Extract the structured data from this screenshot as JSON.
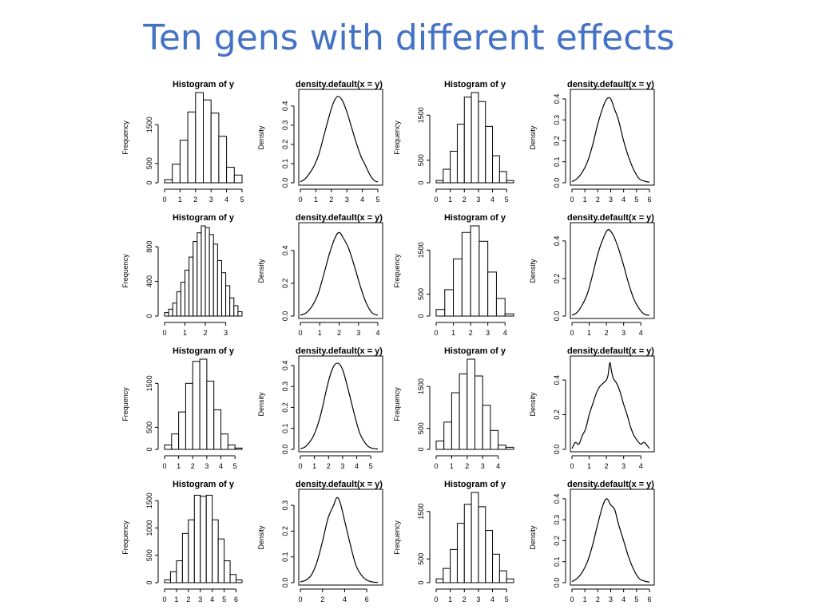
{
  "slide": {
    "title": "Ten gens with different effects"
  },
  "chart_data": [
    {
      "type": "bar",
      "title": "Histogram of y",
      "xlabel": "",
      "ylabel": "Frequency",
      "bin_edges": [
        0,
        0.5,
        1,
        1.5,
        2,
        2.5,
        3,
        3.5,
        4,
        4.5,
        5
      ],
      "values": [
        80,
        480,
        1100,
        1830,
        2330,
        2140,
        1800,
        1200,
        400,
        200
      ],
      "xticks": [
        0,
        1,
        2,
        3,
        4,
        5
      ],
      "yticks": [
        0,
        500,
        1500
      ],
      "xlim": [
        0,
        5
      ],
      "ylim": [
        0,
        2330
      ]
    },
    {
      "type": "line",
      "title": "density.default(x = y)",
      "xlabel": "",
      "ylabel": "Density",
      "x": [
        0,
        0.3,
        0.6,
        0.9,
        1.2,
        1.5,
        1.8,
        2.1,
        2.4,
        2.7,
        3.0,
        3.3,
        3.6,
        3.9,
        4.2,
        4.5,
        4.8,
        5.0
      ],
      "y": [
        0.005,
        0.02,
        0.05,
        0.09,
        0.15,
        0.24,
        0.33,
        0.41,
        0.45,
        0.43,
        0.37,
        0.29,
        0.21,
        0.14,
        0.09,
        0.04,
        0.01,
        0.005
      ],
      "xticks": [
        0,
        1,
        2,
        3,
        4,
        5
      ],
      "yticks": [
        0.0,
        0.1,
        0.2,
        0.3,
        0.4
      ],
      "xlim": [
        0,
        5
      ],
      "ylim": [
        0,
        0.47
      ]
    },
    {
      "type": "bar",
      "title": "Histogram of y",
      "xlabel": "",
      "ylabel": "Frequency",
      "bin_edges": [
        0,
        0.5,
        1,
        1.5,
        2,
        2.5,
        3,
        3.5,
        4,
        4.5,
        5,
        5.5
      ],
      "values": [
        50,
        300,
        700,
        1300,
        1900,
        2000,
        1800,
        1250,
        600,
        250,
        50
      ],
      "xticks": [
        0,
        1,
        2,
        3,
        4,
        5
      ],
      "yticks": [
        0,
        500,
        1500
      ],
      "xlim": [
        0,
        5.5
      ],
      "ylim": [
        0,
        2000
      ]
    },
    {
      "type": "line",
      "title": "density.default(x = y)",
      "xlabel": "",
      "ylabel": "Density",
      "x": [
        0,
        0.4,
        0.8,
        1.2,
        1.6,
        2.0,
        2.4,
        2.7,
        3.0,
        3.3,
        3.6,
        4.0,
        4.4,
        4.8,
        5.2,
        5.6,
        6.0
      ],
      "y": [
        0.005,
        0.02,
        0.05,
        0.1,
        0.18,
        0.28,
        0.36,
        0.4,
        0.4,
        0.35,
        0.3,
        0.2,
        0.12,
        0.06,
        0.02,
        0.008,
        0.003
      ],
      "xticks": [
        0,
        1,
        2,
        3,
        4,
        5,
        6
      ],
      "yticks": [
        0.0,
        0.1,
        0.2,
        0.3,
        0.4
      ],
      "xlim": [
        0,
        6
      ],
      "ylim": [
        0,
        0.43
      ]
    },
    {
      "type": "bar",
      "title": "Histogram of y",
      "xlabel": "",
      "ylabel": "Frequency",
      "bin_edges": [
        0,
        0.2,
        0.4,
        0.6,
        0.8,
        1.0,
        1.2,
        1.4,
        1.6,
        1.8,
        2.0,
        2.2,
        2.4,
        2.6,
        2.8,
        3.0,
        3.2,
        3.4,
        3.6,
        3.8
      ],
      "values": [
        40,
        80,
        150,
        280,
        390,
        530,
        680,
        860,
        960,
        1040,
        1020,
        940,
        830,
        640,
        500,
        350,
        210,
        120,
        50
      ],
      "xticks": [
        0,
        1,
        2,
        3
      ],
      "yticks": [
        0,
        400,
        800
      ],
      "xlim": [
        0,
        3.8
      ],
      "ylim": [
        0,
        1040
      ]
    },
    {
      "type": "line",
      "title": "density.default(x = y)",
      "xlabel": "",
      "ylabel": "Density",
      "x": [
        0,
        0.3,
        0.6,
        0.9,
        1.2,
        1.5,
        1.8,
        2.0,
        2.2,
        2.5,
        2.8,
        3.1,
        3.4,
        3.7,
        4.0
      ],
      "y": [
        0.005,
        0.02,
        0.06,
        0.13,
        0.25,
        0.38,
        0.48,
        0.51,
        0.48,
        0.41,
        0.3,
        0.18,
        0.08,
        0.02,
        0.005
      ],
      "xticks": [
        0,
        1,
        2,
        3,
        4
      ],
      "yticks": [
        0.0,
        0.2,
        0.4
      ],
      "xlim": [
        0,
        4
      ],
      "ylim": [
        0,
        0.55
      ]
    },
    {
      "type": "bar",
      "title": "Histogram of y",
      "xlabel": "",
      "ylabel": "Frequency",
      "bin_edges": [
        0,
        0.5,
        1,
        1.5,
        2,
        2.5,
        3,
        3.5,
        4,
        4.5
      ],
      "values": [
        150,
        600,
        1300,
        1900,
        2050,
        1700,
        1000,
        400,
        50
      ],
      "xticks": [
        0,
        1,
        2,
        3,
        4
      ],
      "yticks": [
        0,
        500,
        1500
      ],
      "xlim": [
        0,
        4.5
      ],
      "ylim": [
        0,
        2050
      ]
    },
    {
      "type": "line",
      "title": "density.default(x = y)",
      "xlabel": "",
      "ylabel": "Density",
      "x": [
        0,
        0.3,
        0.6,
        0.9,
        1.2,
        1.5,
        1.8,
        2.1,
        2.4,
        2.7,
        3.0,
        3.3,
        3.6,
        3.9,
        4.2,
        4.5
      ],
      "y": [
        0.005,
        0.02,
        0.06,
        0.12,
        0.22,
        0.33,
        0.41,
        0.46,
        0.43,
        0.36,
        0.27,
        0.17,
        0.09,
        0.04,
        0.01,
        0.005
      ],
      "xticks": [
        0,
        1,
        2,
        3,
        4
      ],
      "yticks": [
        0.0,
        0.2,
        0.4
      ],
      "xlim": [
        0,
        4.5
      ],
      "ylim": [
        0,
        0.48
      ]
    },
    {
      "type": "bar",
      "title": "Histogram of y",
      "xlabel": "",
      "ylabel": "Frequency",
      "bin_edges": [
        0,
        0.5,
        1,
        1.5,
        2,
        2.5,
        3,
        3.5,
        4,
        4.5,
        5,
        5.5
      ],
      "values": [
        100,
        350,
        850,
        1500,
        2000,
        2050,
        1550,
        900,
        350,
        100,
        30
      ],
      "xticks": [
        0,
        1,
        2,
        3,
        4,
        5
      ],
      "yticks": [
        0,
        500,
        1500
      ],
      "xlim": [
        0,
        5.5
      ],
      "ylim": [
        0,
        2050
      ]
    },
    {
      "type": "line",
      "title": "density.default(x = y)",
      "xlabel": "",
      "ylabel": "Density",
      "x": [
        0,
        0.3,
        0.6,
        0.9,
        1.2,
        1.5,
        1.8,
        2.1,
        2.4,
        2.7,
        3.0,
        3.3,
        3.6,
        3.9,
        4.2,
        4.5,
        4.8,
        5.1,
        5.5
      ],
      "y": [
        0.003,
        0.01,
        0.03,
        0.06,
        0.11,
        0.18,
        0.27,
        0.35,
        0.4,
        0.41,
        0.38,
        0.31,
        0.23,
        0.15,
        0.08,
        0.04,
        0.015,
        0.005,
        0.002
      ],
      "xticks": [
        0,
        1,
        2,
        3,
        4,
        5
      ],
      "yticks": [
        0.0,
        0.1,
        0.2,
        0.3,
        0.4
      ],
      "xlim": [
        0,
        5.5
      ],
      "ylim": [
        0,
        0.43
      ]
    },
    {
      "type": "bar",
      "title": "Histogram of y",
      "xlabel": "",
      "ylabel": "Frequency",
      "bin_edges": [
        0,
        0.5,
        1,
        1.5,
        2,
        2.5,
        3,
        3.5,
        4,
        4.5,
        5
      ],
      "values": [
        200,
        650,
        1350,
        1800,
        2150,
        1750,
        1050,
        450,
        100,
        50
      ],
      "xticks": [
        0,
        1,
        2,
        3,
        4
      ],
      "yticks": [
        0,
        500,
        1500
      ],
      "xlim": [
        0,
        5
      ],
      "ylim": [
        0,
        2150
      ]
    },
    {
      "type": "line",
      "title": "density.default(x = y)",
      "xlabel": "",
      "ylabel": "Density",
      "x": [
        0,
        0.2,
        0.4,
        0.6,
        0.8,
        1.0,
        1.2,
        1.4,
        1.6,
        1.8,
        2.0,
        2.1,
        2.2,
        2.3,
        2.4,
        2.6,
        2.8,
        3.0,
        3.2,
        3.4,
        3.6,
        3.8,
        4.0,
        4.2,
        4.5
      ],
      "y": [
        0.005,
        0.04,
        0.03,
        0.08,
        0.12,
        0.2,
        0.26,
        0.32,
        0.36,
        0.38,
        0.4,
        0.43,
        0.5,
        0.45,
        0.41,
        0.38,
        0.33,
        0.26,
        0.2,
        0.13,
        0.08,
        0.05,
        0.03,
        0.04,
        0.005
      ],
      "xticks": [
        0,
        1,
        2,
        3,
        4
      ],
      "yticks": [
        0.0,
        0.2,
        0.4
      ],
      "xlim": [
        0,
        4.5
      ],
      "ylim": [
        0,
        0.52
      ]
    },
    {
      "type": "bar",
      "title": "Histogram of y",
      "xlabel": "",
      "ylabel": "Frequency",
      "bin_edges": [
        0,
        0.5,
        1,
        1.5,
        2,
        2.5,
        3,
        3.5,
        4,
        4.5,
        5,
        5.5,
        6,
        6.5
      ],
      "values": [
        50,
        200,
        400,
        900,
        1150,
        1600,
        1580,
        1600,
        1150,
        800,
        400,
        150,
        50
      ],
      "xticks": [
        0,
        1,
        2,
        3,
        4,
        5,
        6
      ],
      "yticks": [
        0,
        500,
        1000,
        1500
      ],
      "xlim": [
        0,
        6.5
      ],
      "ylim": [
        0,
        1650
      ]
    },
    {
      "type": "line",
      "title": "density.default(x = y)",
      "xlabel": "",
      "ylabel": "Density",
      "x": [
        0,
        0.5,
        1,
        1.5,
        2,
        2.5,
        3,
        3.3,
        3.6,
        4,
        4.5,
        5,
        5.5,
        6,
        6.5,
        7
      ],
      "y": [
        0.003,
        0.01,
        0.03,
        0.08,
        0.16,
        0.25,
        0.3,
        0.33,
        0.31,
        0.24,
        0.15,
        0.07,
        0.03,
        0.01,
        0.003,
        0.001
      ],
      "xticks": [
        0,
        2,
        4,
        6
      ],
      "yticks": [
        0.0,
        0.1,
        0.2,
        0.3
      ],
      "xlim": [
        0,
        7
      ],
      "ylim": [
        0,
        0.35
      ]
    },
    {
      "type": "bar",
      "title": "Histogram of y",
      "xlabel": "",
      "ylabel": "Frequency",
      "bin_edges": [
        0,
        0.5,
        1,
        1.5,
        2,
        2.5,
        3,
        3.5,
        4,
        4.5,
        5,
        5.5
      ],
      "values": [
        80,
        300,
        700,
        1250,
        1650,
        1900,
        1600,
        1100,
        600,
        250,
        80
      ],
      "xticks": [
        0,
        1,
        2,
        3,
        4,
        5
      ],
      "yticks": [
        0,
        500,
        1500
      ],
      "xlim": [
        0,
        5.5
      ],
      "ylim": [
        0,
        1900
      ]
    },
    {
      "type": "line",
      "title": "density.default(x = y)",
      "xlabel": "",
      "ylabel": "Density",
      "x": [
        0,
        0.4,
        0.8,
        1.2,
        1.6,
        2.0,
        2.4,
        2.7,
        3.0,
        3.3,
        3.6,
        4.0,
        4.4,
        4.8,
        5.2,
        5.6,
        6.0
      ],
      "y": [
        0.005,
        0.02,
        0.05,
        0.1,
        0.18,
        0.28,
        0.37,
        0.4,
        0.37,
        0.35,
        0.28,
        0.2,
        0.12,
        0.06,
        0.02,
        0.008,
        0.003
      ],
      "xticks": [
        0,
        1,
        2,
        3,
        4,
        5,
        6
      ],
      "yticks": [
        0.0,
        0.1,
        0.2,
        0.3,
        0.4
      ],
      "xlim": [
        0,
        6
      ],
      "ylim": [
        0,
        0.43
      ]
    }
  ]
}
